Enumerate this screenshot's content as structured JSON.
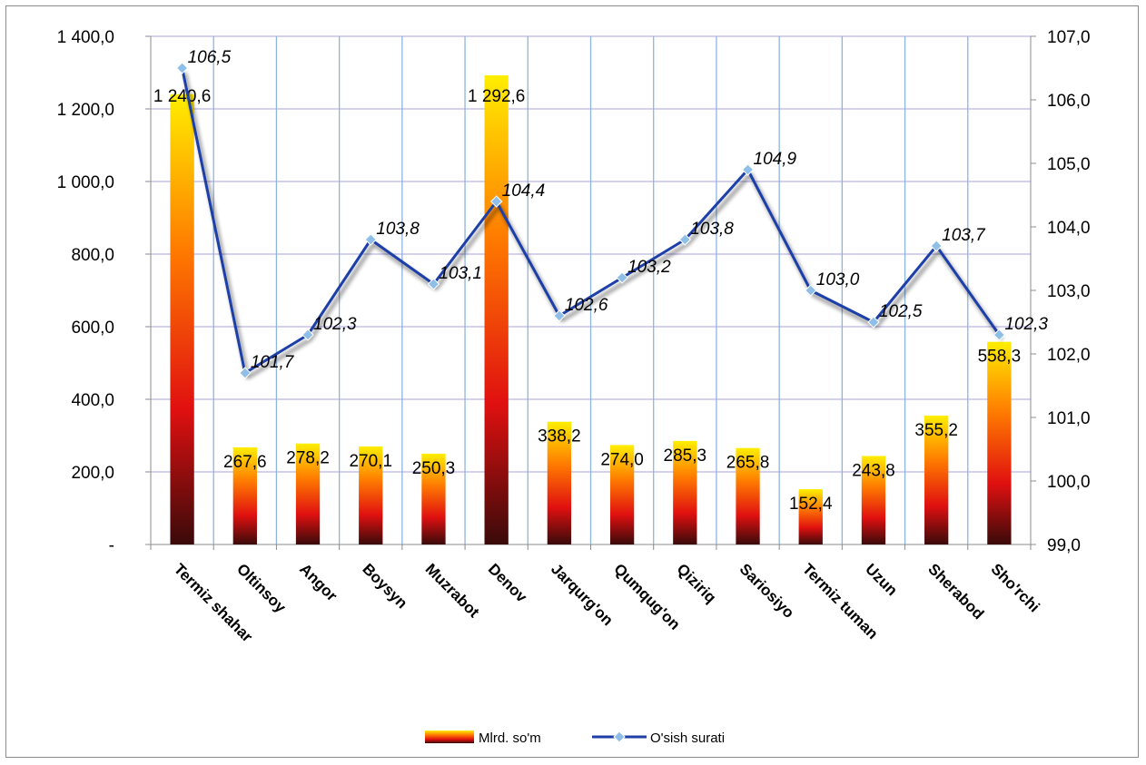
{
  "chart_data": {
    "type": "bar",
    "categories": [
      "Termiz shahar",
      "Oltinsoy",
      "Angor",
      "Boysyn",
      "Muzrabot",
      "Denov",
      "Jarqurg'on",
      "Qumqug'on",
      "Qiziriq",
      "Sariosiyo",
      "Termiz tuman",
      "Uzun",
      "Sherabod",
      "Sho'rchi"
    ],
    "series": [
      {
        "name": "Mlrd. so'm",
        "type": "bar",
        "axis": "left",
        "values": [
          1240.6,
          267.6,
          278.2,
          270.1,
          250.3,
          1292.6,
          338.2,
          274.0,
          285.3,
          265.8,
          152.4,
          243.8,
          355.2,
          558.3
        ],
        "labels": [
          "1 240,6",
          "267,6",
          "278,2",
          "270,1",
          "250,3",
          "1 292,6",
          "338,2",
          "274,0",
          "285,3",
          "265,8",
          "152,4",
          "243,8",
          "355,2",
          "558,3"
        ]
      },
      {
        "name": "O'sish surati",
        "type": "line",
        "axis": "right",
        "values": [
          106.5,
          101.7,
          102.3,
          103.8,
          103.1,
          104.4,
          102.6,
          103.2,
          103.8,
          104.9,
          103.0,
          102.5,
          103.7,
          102.3
        ],
        "labels": [
          "106,5",
          "101,7",
          "102,3",
          "103,8",
          "103,1",
          "104,4",
          "102,6",
          "103,2",
          "103,8",
          "104,9",
          "103,0",
          "102,5",
          "103,7",
          "102,3"
        ],
        "color": "#1f3fa8"
      }
    ],
    "y_left": {
      "range": [
        0,
        1400
      ],
      "ticks": [
        0,
        200,
        400,
        600,
        800,
        1000,
        1200,
        1400
      ],
      "tick_labels": [
        "-",
        "200,0",
        "400,0",
        "600,0",
        "800,0",
        "1 000,0",
        "1 200,0",
        "1 400,0"
      ]
    },
    "y_right": {
      "range": [
        99,
        107
      ],
      "ticks": [
        99,
        100,
        101,
        102,
        103,
        104,
        105,
        106,
        107
      ],
      "tick_labels": [
        "99,0",
        "100,0",
        "101,0",
        "102,0",
        "103,0",
        "104,0",
        "105,0",
        "106,0",
        "107,0"
      ]
    },
    "grid": true,
    "legend": "bottom-center",
    "colors": {
      "gridline_h": "#b9b4e8",
      "gridline_v": "#8fb4e0",
      "bar_top": "#ffee00",
      "bar_mid": "#ff7a00",
      "bar_low": "#e01010",
      "bar_bottom": "#3a0a0a",
      "line": "#1f3fa8",
      "marker": "#8fbfe8",
      "axis": "#8c8c8c"
    }
  }
}
